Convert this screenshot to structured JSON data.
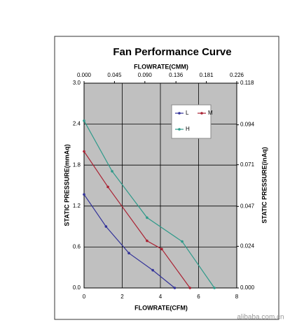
{
  "chart_data": {
    "type": "line",
    "title": "Fan Performance Curve",
    "x2label": "FLOWRATE(CMM)",
    "xlabel": "FLOWRATE(CFM)",
    "ylabel": "STATIC PRESSURE(mmAq)",
    "y2label": "STATIC PRESSURE(inAq)",
    "xlim": [
      0,
      8
    ],
    "xticks": [
      0,
      2,
      4,
      6,
      8
    ],
    "x2lim": [
      0,
      0.226
    ],
    "x2ticks": [
      {
        "value": 0,
        "label": "0.000"
      },
      {
        "value": 0.045,
        "label": "0.045"
      },
      {
        "value": 0.09,
        "label": "0.090"
      },
      {
        "value": 0.136,
        "label": "0.136"
      },
      {
        "value": 0.181,
        "label": "0.181"
      },
      {
        "value": 0.226,
        "label": "0.226"
      }
    ],
    "ylim": [
      0,
      3
    ],
    "yticks": [
      {
        "value": 0,
        "label": "0.0"
      },
      0.6,
      1.2,
      1.8,
      2.4,
      {
        "value": 3,
        "label": "3.0"
      }
    ],
    "y2lim": [
      0,
      0.118
    ],
    "y2ticks": [
      {
        "value": 0,
        "label": "0.000"
      },
      0.024,
      0.047,
      0.071,
      0.094,
      0.118
    ],
    "grid": true,
    "series": [
      {
        "name": "L",
        "color": "#333399",
        "x": [
          0,
          1.15,
          2.35,
          3.6,
          4.75
        ],
        "values": [
          1.37,
          0.9,
          0.51,
          0.26,
          0
        ]
      },
      {
        "name": "M",
        "color": "#aa2233",
        "x": [
          0,
          1.25,
          3.3,
          4.07,
          5.55
        ],
        "values": [
          2.0,
          1.48,
          0.69,
          0.57,
          0
        ]
      },
      {
        "name": "H",
        "color": "#2f9a8a",
        "x": [
          0,
          1.47,
          3.3,
          5.14,
          6.83
        ],
        "values": [
          2.45,
          1.71,
          1.03,
          0.68,
          0
        ]
      }
    ],
    "watermark": "alibaba.com.cn"
  }
}
